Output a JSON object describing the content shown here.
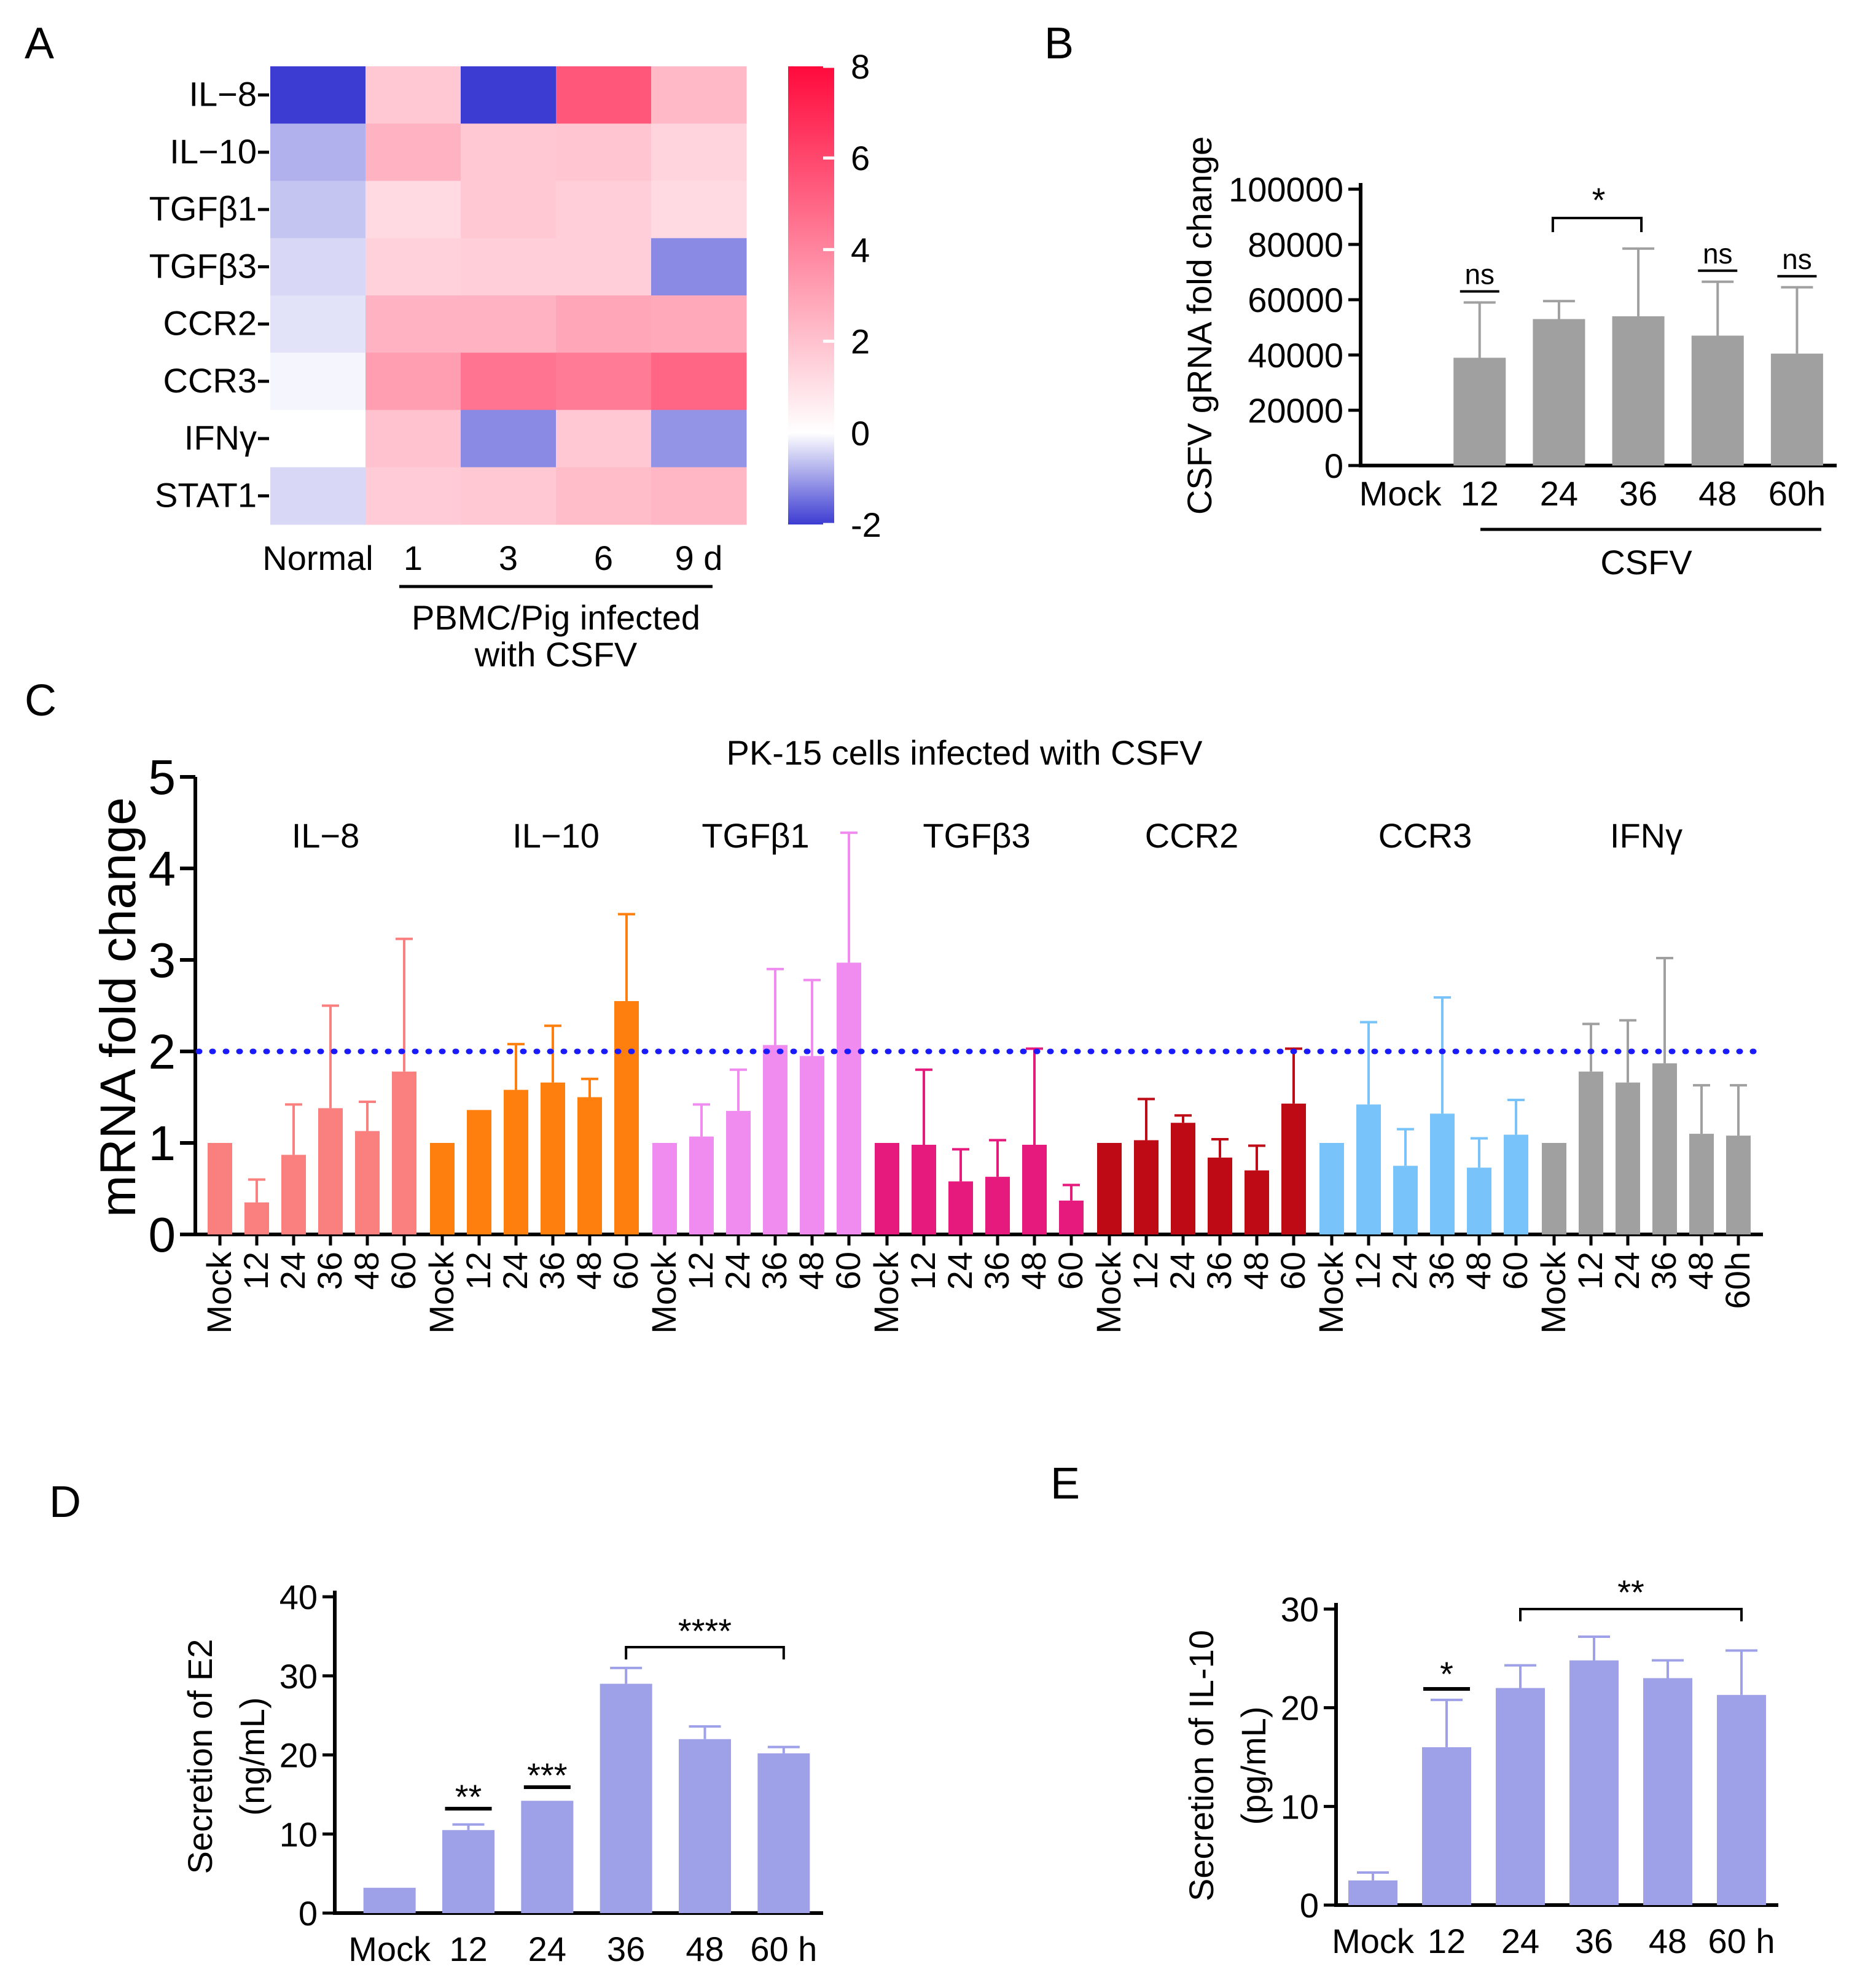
{
  "figure": {
    "panels": [
      "A",
      "B",
      "C",
      "D",
      "E"
    ]
  },
  "chart_data": [
    {
      "panel": "A",
      "type": "heatmap",
      "rows": [
        "IL−8",
        "IL−10",
        "TGFβ1",
        "TGFβ3",
        "CCR2",
        "CCR3",
        "IFNγ",
        "STAT1"
      ],
      "columns": [
        "Normal",
        "1",
        "3",
        "6",
        "9 d"
      ],
      "values": [
        [
          -2.0,
          1.8,
          -2.0,
          5.5,
          2.3
        ],
        [
          -0.8,
          2.5,
          1.8,
          1.9,
          1.4
        ],
        [
          -0.6,
          1.2,
          1.8,
          1.6,
          1.2
        ],
        [
          -0.4,
          1.5,
          1.6,
          1.6,
          -1.2
        ],
        [
          -0.3,
          2.5,
          2.5,
          2.9,
          2.8
        ],
        [
          -0.1,
          3.2,
          4.5,
          4.3,
          5.0
        ],
        [
          0.0,
          2.0,
          -1.2,
          1.8,
          -1.1
        ],
        [
          -0.4,
          1.7,
          1.8,
          2.2,
          2.4
        ]
      ],
      "colorbar": {
        "min": -2,
        "max": 8,
        "ticks": [
          "8",
          "6",
          "4",
          "2",
          "0",
          "-2"
        ]
      },
      "group_label": "PBMC/Pig infected with CSFV",
      "group_label_lines": [
        "PBMC/Pig infected",
        "with CSFV"
      ],
      "colors": {
        "low": "#3c3cd2",
        "mid": "#ffffff",
        "high": "#ff0a3c"
      }
    },
    {
      "panel": "B",
      "type": "bar",
      "categories": [
        "Mock",
        "12",
        "24",
        "36",
        "48",
        "60h"
      ],
      "values": [
        0,
        39000,
        53000,
        54000,
        47000,
        40500
      ],
      "errors": [
        0,
        20000,
        6500,
        24500,
        19500,
        24000
      ],
      "ylabel": "CSFV gRNA fold change",
      "ylim": [
        0,
        100000
      ],
      "yticks": [
        "0",
        "20000",
        "40000",
        "60000",
        "80000",
        "100000"
      ],
      "group_label": "CSFV",
      "annotations": [
        {
          "text": "ns",
          "target": "12"
        },
        {
          "text": "*",
          "target": "24-36"
        },
        {
          "text": "ns",
          "target": "48"
        },
        {
          "text": "ns",
          "target": "60h"
        }
      ],
      "color": "#a0a0a0"
    },
    {
      "panel": "C",
      "type": "bar",
      "title": "PK-15 cells infected with CSFV",
      "ylabel": "mRNA fold change",
      "ylim": [
        0,
        5
      ],
      "yticks": [
        "0",
        "1",
        "2",
        "3",
        "4",
        "5"
      ],
      "threshold": 2,
      "threshold_color": "#1a1aff",
      "timepoints": [
        "Mock",
        "12",
        "24",
        "36",
        "48",
        "60"
      ],
      "last_label": "60h",
      "series": [
        {
          "name": "IL−8",
          "color": "#fa8080",
          "values": [
            1.0,
            0.35,
            0.87,
            1.38,
            1.13,
            1.78
          ],
          "errors": [
            0,
            0.25,
            0.55,
            1.12,
            0.32,
            1.45
          ]
        },
        {
          "name": "IL−10",
          "color": "#ff7f0e",
          "values": [
            1.0,
            1.36,
            1.58,
            1.66,
            1.5,
            2.55
          ],
          "errors": [
            0,
            0,
            0.5,
            0.62,
            0.2,
            0.95
          ]
        },
        {
          "name": "TGFβ1",
          "color": "#f08cf0",
          "values": [
            1.0,
            1.07,
            1.35,
            2.07,
            1.95,
            2.97
          ],
          "errors": [
            0,
            0.35,
            0.45,
            0.83,
            0.83,
            1.42
          ]
        },
        {
          "name": "TGFβ3",
          "color": "#e6197d",
          "values": [
            1.0,
            0.98,
            0.58,
            0.63,
            0.98,
            0.37
          ],
          "errors": [
            0,
            0.82,
            0.35,
            0.4,
            1.05,
            0.17
          ]
        },
        {
          "name": "CCR2",
          "color": "#be0a14",
          "values": [
            1.0,
            1.03,
            1.22,
            0.84,
            0.7,
            1.43
          ],
          "errors": [
            0,
            0.45,
            0.08,
            0.2,
            0.27,
            0.6
          ]
        },
        {
          "name": "CCR3",
          "color": "#78c3fa",
          "values": [
            1.0,
            1.42,
            0.75,
            1.32,
            0.73,
            1.09
          ],
          "errors": [
            0,
            0.9,
            0.4,
            1.27,
            0.32,
            0.38
          ]
        },
        {
          "name": "IFNγ",
          "color": "#a0a0a0",
          "values": [
            1.0,
            1.78,
            1.66,
            1.87,
            1.1,
            1.08
          ],
          "errors": [
            0,
            0.52,
            0.68,
            1.15,
            0.53,
            0.55
          ]
        }
      ]
    },
    {
      "panel": "D",
      "type": "bar",
      "categories": [
        "Mock",
        "12",
        "24",
        "36",
        "48",
        "60 h"
      ],
      "values": [
        3.2,
        10.5,
        14.2,
        29.0,
        22.0,
        20.2
      ],
      "errors": [
        0,
        0.7,
        0,
        2.0,
        1.6,
        0.8
      ],
      "ylabel_lines": [
        "Secretion of E2",
        "(ng/mL)"
      ],
      "ylim": [
        0,
        40
      ],
      "yticks": [
        "0",
        "10",
        "20",
        "30",
        "40"
      ],
      "annotations": [
        {
          "text": "**",
          "target": "12"
        },
        {
          "text": "***",
          "target": "24"
        },
        {
          "text": "****",
          "target": "36-60 h"
        }
      ],
      "color": "#9ea0e8"
    },
    {
      "panel": "E",
      "type": "bar",
      "categories": [
        "Mock",
        "12",
        "24",
        "36",
        "48",
        "60 h"
      ],
      "values": [
        2.5,
        16.0,
        22.0,
        24.8,
        23.0,
        21.3
      ],
      "errors": [
        0.8,
        4.8,
        2.3,
        2.4,
        1.8,
        4.5
      ],
      "ylabel_lines": [
        "Secretion of IL-10",
        "(pg/mL)"
      ],
      "ylim": [
        0,
        30
      ],
      "yticks": [
        "0",
        "10",
        "20",
        "30"
      ],
      "annotations": [
        {
          "text": "*",
          "target": "12"
        },
        {
          "text": "**",
          "target": "24-60 h"
        }
      ],
      "color": "#9ea0e8"
    }
  ]
}
